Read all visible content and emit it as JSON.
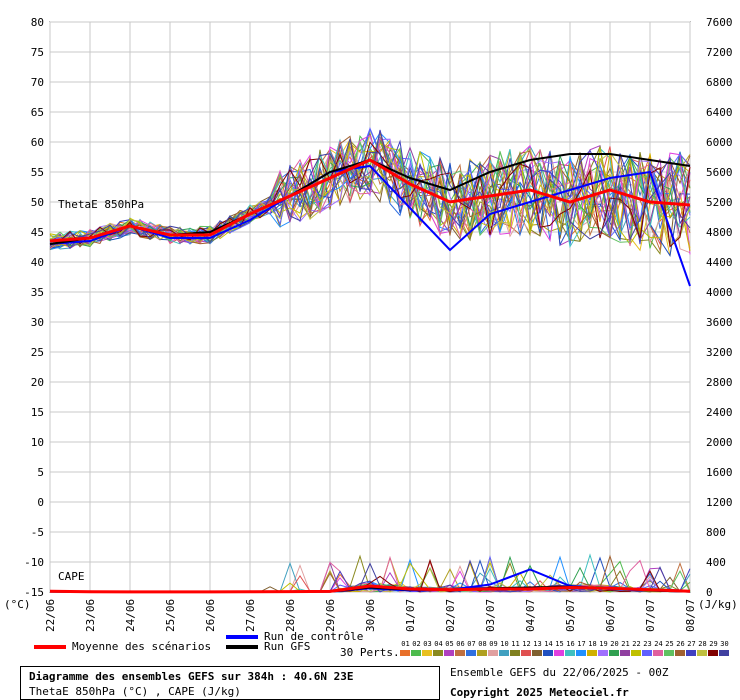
{
  "chart_data": {
    "type": "line",
    "left_axis": {
      "ticks": [
        80,
        75,
        70,
        65,
        60,
        55,
        50,
        45,
        40,
        35,
        30,
        25,
        20,
        15,
        10,
        5,
        0,
        -5,
        -10,
        -15
      ],
      "unit_label": "(°C)",
      "range": [
        -15,
        80
      ]
    },
    "right_axis": {
      "ticks": [
        7600,
        7200,
        6800,
        6400,
        6000,
        5600,
        5200,
        4800,
        4400,
        4000,
        3600,
        3200,
        2800,
        2400,
        2000,
        1600,
        1200,
        800,
        400,
        0
      ],
      "unit_label": "(J/kg)",
      "range": [
        0,
        7600
      ]
    },
    "x_dates": [
      "22/06",
      "23/06",
      "24/06",
      "25/06",
      "26/06",
      "27/06",
      "28/06",
      "29/06",
      "30/06",
      "01/07",
      "02/07",
      "03/07",
      "04/07",
      "05/07",
      "06/07",
      "07/07",
      "08/07"
    ],
    "theta_label": "ThetaE 850hPa",
    "cape_label": "CAPE",
    "theta_mean": [
      43.5,
      44,
      46,
      44.5,
      44.5,
      48,
      51,
      54,
      57,
      53,
      50,
      51,
      52,
      50,
      52,
      50,
      49.5
    ],
    "theta_control": [
      43,
      43.5,
      46,
      44,
      44,
      47,
      51,
      55,
      56,
      49,
      42,
      48,
      50,
      52,
      54,
      55,
      36
    ],
    "theta_gfs": [
      43,
      44,
      46,
      44.5,
      45,
      48,
      51,
      55,
      57,
      54,
      52,
      55,
      57,
      58,
      58,
      57,
      56
    ],
    "cape_mean": [
      10,
      3,
      2,
      2,
      2,
      3,
      5,
      8,
      80,
      40,
      30,
      40,
      40,
      60,
      50,
      30,
      10
    ],
    "cape_control": [
      5,
      2,
      1,
      1,
      1,
      2,
      3,
      5,
      50,
      20,
      30,
      100,
      300,
      80,
      40,
      20,
      5
    ],
    "cape_gfs": [
      5,
      2,
      1,
      1,
      1,
      2,
      3,
      5,
      60,
      30,
      30,
      50,
      60,
      70,
      50,
      20,
      5
    ]
  },
  "legend": {
    "mean_label": "Moyenne des scénarios",
    "control_label": "Run de contrôle",
    "gfs_label": "Run GFS",
    "perts_label": "30 Perts.",
    "member_numbers": [
      "01",
      "02",
      "03",
      "04",
      "05",
      "06",
      "07",
      "08",
      "09",
      "10",
      "11",
      "12",
      "13",
      "14",
      "15",
      "16",
      "17",
      "18",
      "19",
      "20",
      "21",
      "22",
      "23",
      "24",
      "25",
      "26",
      "27",
      "28",
      "29",
      "30"
    ],
    "member_colors": [
      "#e8702a",
      "#4dbb4d",
      "#e8c020",
      "#8a8a20",
      "#b040c0",
      "#c07040",
      "#3070e0",
      "#b0a020",
      "#e0a0a0",
      "#40a0c0",
      "#808020",
      "#e05050",
      "#806030",
      "#2050c0",
      "#e040e0",
      "#40c0c0",
      "#2090ff",
      "#d0b000",
      "#a070ff",
      "#30a050",
      "#9040a0",
      "#c0c000",
      "#6060ff",
      "#e060a0",
      "#60c060",
      "#a06030",
      "#4040c0",
      "#c0c040",
      "#800000",
      "#4040a0"
    ]
  },
  "info": {
    "title": "Diagramme des ensembles GEFS sur 384h : 40.6N 23E",
    "subtitle": "ThetaE 850hPa (°C) , CAPE (J/kg)",
    "ensemble_date": "Ensemble GEFS du 22/06/2025 - 00Z",
    "copyright": "Copyright 2025 Meteociel.fr"
  },
  "colors": {
    "mean": "#ff0000",
    "control": "#0000ff",
    "gfs": "#000000",
    "grid": "#c8c8c8"
  }
}
